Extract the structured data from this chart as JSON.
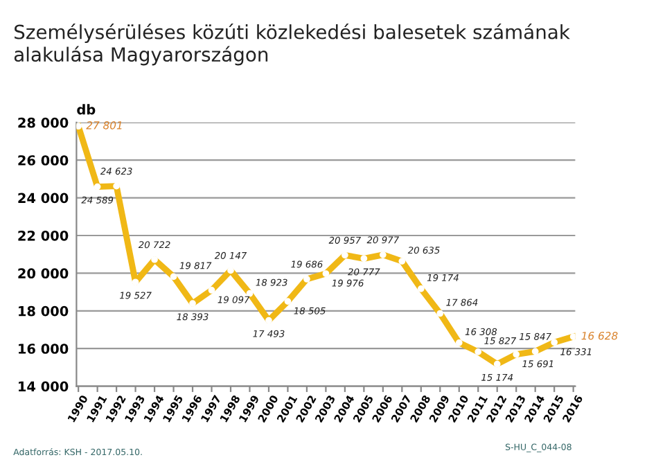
{
  "chart_data": {
    "type": "line",
    "title": "Személysérüléses közúti közlekedési balesetek számának\nalakulása Magyarországon",
    "ylabel": "db",
    "categories": [
      "1990",
      "1991",
      "1992",
      "1993",
      "1994",
      "1995",
      "1996",
      "1997",
      "1998",
      "1999",
      "2000",
      "2001",
      "2002",
      "2003",
      "2004",
      "2005",
      "2006",
      "2007",
      "2008",
      "2009",
      "2010",
      "2011",
      "2012",
      "2013",
      "2014",
      "2015",
      "2016"
    ],
    "series": [
      {
        "color": "#f0b816",
        "values": [
          27801,
          24589,
          24623,
          19527,
          20722,
          19817,
          18393,
          19097,
          20147,
          18923,
          17493,
          18505,
          19686,
          19976,
          20957,
          20777,
          20977,
          20635,
          19174,
          17864,
          16308,
          15827,
          15174,
          15691,
          15847,
          16331,
          16628
        ]
      }
    ],
    "ylim": [
      14000,
      28000
    ],
    "yticks": [
      {
        "value": 14000,
        "label": "14 000"
      },
      {
        "value": 16000,
        "label": "16 000"
      },
      {
        "value": 18000,
        "label": "18 000"
      },
      {
        "value": 20000,
        "label": "20 000"
      },
      {
        "value": 22000,
        "label": "22 000"
      },
      {
        "value": 24000,
        "label": "24 000"
      },
      {
        "value": 26000,
        "label": "26 000"
      },
      {
        "value": 28000,
        "label": "28 000"
      }
    ],
    "grid": "y",
    "marker": "circle",
    "line_style": "solid",
    "data_labels": true,
    "annotations": [
      "Adatforrás: KSH - 2017.05.10.",
      "S-HU_C_044-08"
    ]
  }
}
